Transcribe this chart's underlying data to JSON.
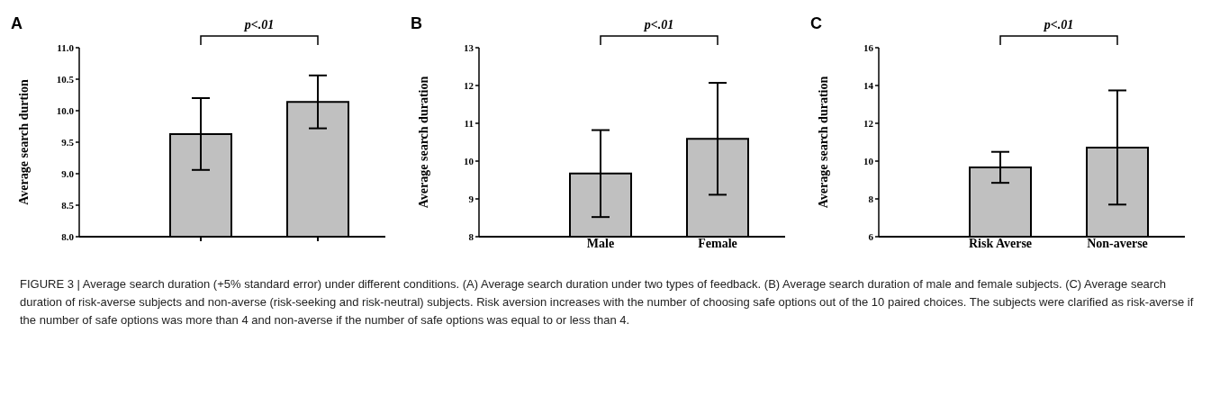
{
  "chart_data": [
    {
      "type": "bar",
      "title": "A",
      "ylabel": "Average search durtion",
      "categories": [
        null,
        null
      ],
      "values": [
        9.63,
        10.14
      ],
      "errors": [
        0.57,
        0.42
      ],
      "color": "#c0c0c0",
      "ylim": [
        8,
        11
      ],
      "yticks": [
        {
          "value": 8,
          "label": "8.0"
        },
        {
          "value": 8.5,
          "label": "8.5"
        },
        {
          "value": 9,
          "label": "9.0"
        },
        {
          "value": 9.5,
          "label": "9.5"
        },
        {
          "value": 10,
          "label": "10.0"
        },
        {
          "value": 10.5,
          "label": "10.5"
        },
        {
          "value": 11,
          "label": "11.0"
        }
      ],
      "grid": false,
      "legend": false,
      "annotations": [
        "p<.01",
        "FIGURE 3 | Average search duration (+5% standard error) under different conditions. (A) Average search duration under two types of feedback. (B) Average search duration of male and female subjects. (C) Average search duration of risk-averse subjects and non-averse (risk-seeking and risk-neutral) subjects. Risk aversion increases with the number of choosing safe options out of the 10 paired choices. The subjects were clarified as risk-averse if the number of safe options was more than 4 and non-averse if the number of safe options was equal to or less than 4."
      ]
    },
    {
      "type": "bar",
      "title": "B",
      "ylabel": "Average search duration",
      "categories": [
        "Male",
        "Female"
      ],
      "values": [
        9.67,
        10.59
      ],
      "errors": [
        1.15,
        1.48
      ],
      "color": "#c0c0c0",
      "ylim": [
        8,
        13
      ],
      "yticks": [
        8,
        9,
        10,
        11,
        12,
        13
      ],
      "grid": false,
      "legend": false,
      "annotations": [
        "p<.01"
      ]
    },
    {
      "type": "bar",
      "title": "C",
      "ylabel": "Average search duration",
      "categories": [
        "Risk Averse",
        "Non-averse"
      ],
      "values": [
        9.67,
        10.72
      ],
      "errors": [
        0.82,
        3.02
      ],
      "color": "#c0c0c0",
      "ylim": [
        6,
        16
      ],
      "yticks": [
        6,
        8,
        10,
        12,
        14,
        16
      ],
      "grid": false,
      "legend": false,
      "annotations": [
        "p<.01"
      ]
    }
  ]
}
